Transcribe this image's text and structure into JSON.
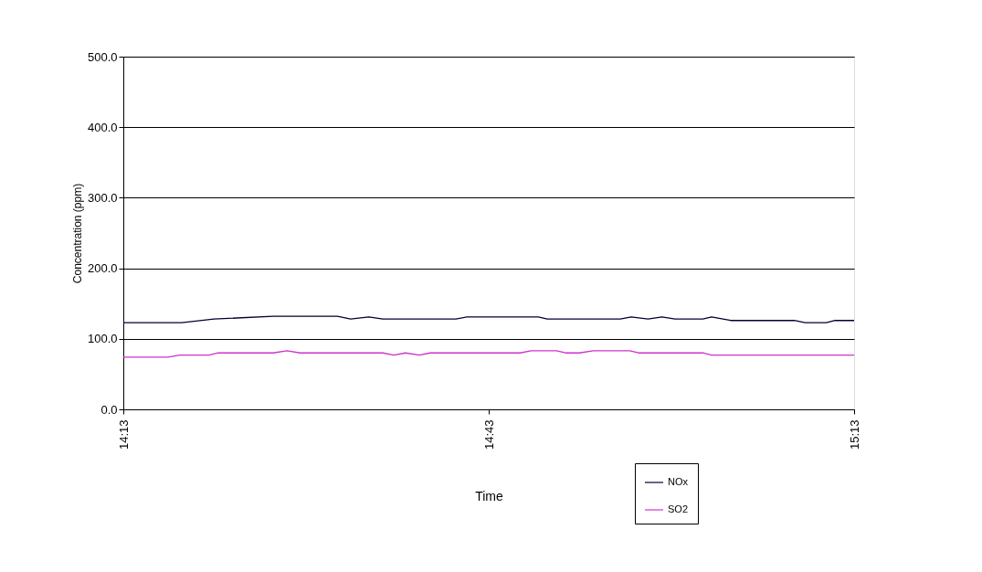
{
  "chart_data": {
    "type": "line",
    "xlabel": "Time",
    "ylabel": "Concentration (ppm)",
    "xlim": [
      14.217,
      15.217
    ],
    "xticks": [
      {
        "value": 14.217,
        "label": "14:13"
      },
      {
        "value": 14.717,
        "label": "14:43"
      },
      {
        "value": 15.217,
        "label": "15:13"
      }
    ],
    "ylim": [
      0,
      500
    ],
    "yticks": [
      {
        "value": 0,
        "label": "0.0"
      },
      {
        "value": 100,
        "label": "100.0"
      },
      {
        "value": 200,
        "label": "200.0"
      },
      {
        "value": 300,
        "label": "300.0"
      },
      {
        "value": 400,
        "label": "400.0"
      },
      {
        "value": 500,
        "label": "500.0"
      }
    ],
    "grid": "y",
    "legend": "bottom",
    "marker": "none",
    "line_style": "solid",
    "series": [
      {
        "name": "NOx",
        "color": "#000033",
        "x": [
          14.217,
          14.297,
          14.341,
          14.422,
          14.51,
          14.528,
          14.553,
          14.572,
          14.672,
          14.687,
          14.785,
          14.797,
          14.897,
          14.912,
          14.935,
          14.954,
          14.972,
          15.01,
          15.022,
          15.048,
          15.135,
          15.15,
          15.179,
          15.191,
          15.217
        ],
        "values": [
          123,
          123,
          128,
          132,
          132,
          128,
          131,
          128,
          128,
          131,
          131,
          128,
          128,
          131,
          128,
          131,
          128,
          128,
          131,
          126,
          126,
          123,
          123,
          126,
          126
        ]
      },
      {
        "name": "SO2",
        "color": "#cc33cc",
        "x": [
          14.217,
          14.278,
          14.294,
          14.334,
          14.347,
          14.422,
          14.441,
          14.459,
          14.572,
          14.587,
          14.603,
          14.622,
          14.637,
          14.76,
          14.775,
          14.81,
          14.822,
          14.841,
          14.86,
          14.91,
          14.922,
          15.01,
          15.022,
          15.217
        ],
        "values": [
          74,
          74,
          77,
          77,
          80,
          80,
          83,
          80,
          80,
          77,
          80,
          77,
          80,
          80,
          83,
          83,
          80,
          80,
          83,
          83,
          80,
          80,
          77,
          77
        ]
      }
    ]
  }
}
